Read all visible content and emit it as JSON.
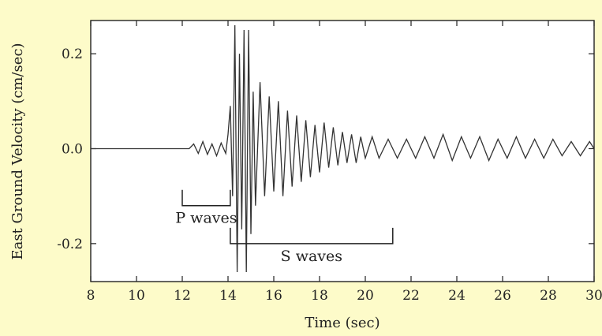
{
  "colors": {
    "background": "#fdfbc9",
    "plot_background": "#ffffff",
    "ink": "#222222"
  },
  "chart_data": {
    "type": "line",
    "xlabel": "Time (sec)",
    "ylabel": "East Ground Velocity (cm/sec)",
    "xlim": [
      8,
      30
    ],
    "ylim": [
      -0.28,
      0.27
    ],
    "x_ticks": [
      8,
      10,
      12,
      14,
      16,
      18,
      20,
      22,
      24,
      26,
      28,
      30
    ],
    "x_tick_labels": [
      "8",
      "10",
      "12",
      "14",
      "16",
      "18",
      "20",
      "22",
      "24",
      "26",
      "28",
      "30"
    ],
    "y_ticks": [
      0.2,
      0.0,
      -0.2
    ],
    "y_tick_labels": [
      "0.2",
      "0.0",
      "-0.2"
    ],
    "grid": false,
    "series": [
      {
        "x": [
          8,
          12.3,
          12.5,
          12.7,
          12.9,
          13.1,
          13.3,
          13.5,
          13.7,
          13.9,
          14.0,
          14.1,
          14.2,
          14.3,
          14.4,
          14.5,
          14.6,
          14.7,
          14.8,
          14.9,
          15.0,
          15.1,
          15.2,
          15.4,
          15.6,
          15.8,
          16.0,
          16.2,
          16.4,
          16.6,
          16.8,
          17.0,
          17.2,
          17.4,
          17.6,
          17.8,
          18.0,
          18.2,
          18.4,
          18.6,
          18.8,
          19.0,
          19.2,
          19.4,
          19.6,
          19.8,
          20.0,
          20.3,
          20.6,
          21.0,
          21.4,
          21.8,
          22.2,
          22.6,
          23.0,
          23.4,
          23.8,
          24.2,
          24.6,
          25.0,
          25.4,
          25.8,
          26.2,
          26.6,
          27.0,
          27.4,
          27.8,
          28.2,
          28.6,
          29.0,
          29.4,
          29.8,
          30.0
        ],
        "y": [
          0.0,
          0.0,
          0.01,
          -0.01,
          0.015,
          -0.012,
          0.01,
          -0.015,
          0.012,
          -0.01,
          0.03,
          0.09,
          -0.1,
          0.26,
          -0.26,
          0.2,
          -0.17,
          0.25,
          -0.26,
          0.25,
          -0.18,
          0.12,
          -0.12,
          0.14,
          -0.1,
          0.11,
          -0.09,
          0.1,
          -0.1,
          0.08,
          -0.08,
          0.07,
          -0.07,
          0.06,
          -0.06,
          0.05,
          -0.05,
          0.055,
          -0.04,
          0.045,
          -0.035,
          0.035,
          -0.03,
          0.03,
          -0.03,
          0.025,
          -0.02,
          0.025,
          -0.02,
          0.02,
          -0.02,
          0.02,
          -0.02,
          0.025,
          -0.02,
          0.03,
          -0.025,
          0.025,
          -0.02,
          0.025,
          -0.025,
          0.02,
          -0.02,
          0.025,
          -0.02,
          0.02,
          -0.02,
          0.02,
          -0.015,
          0.015,
          -0.015,
          0.015,
          0.0
        ]
      }
    ],
    "annotations": [
      {
        "text": "P waves",
        "x_start": 12,
        "x_end": 14.1,
        "y": -0.12
      },
      {
        "text": "S waves",
        "x_start": 14.1,
        "x_end": 21.2,
        "y": -0.2
      }
    ]
  }
}
